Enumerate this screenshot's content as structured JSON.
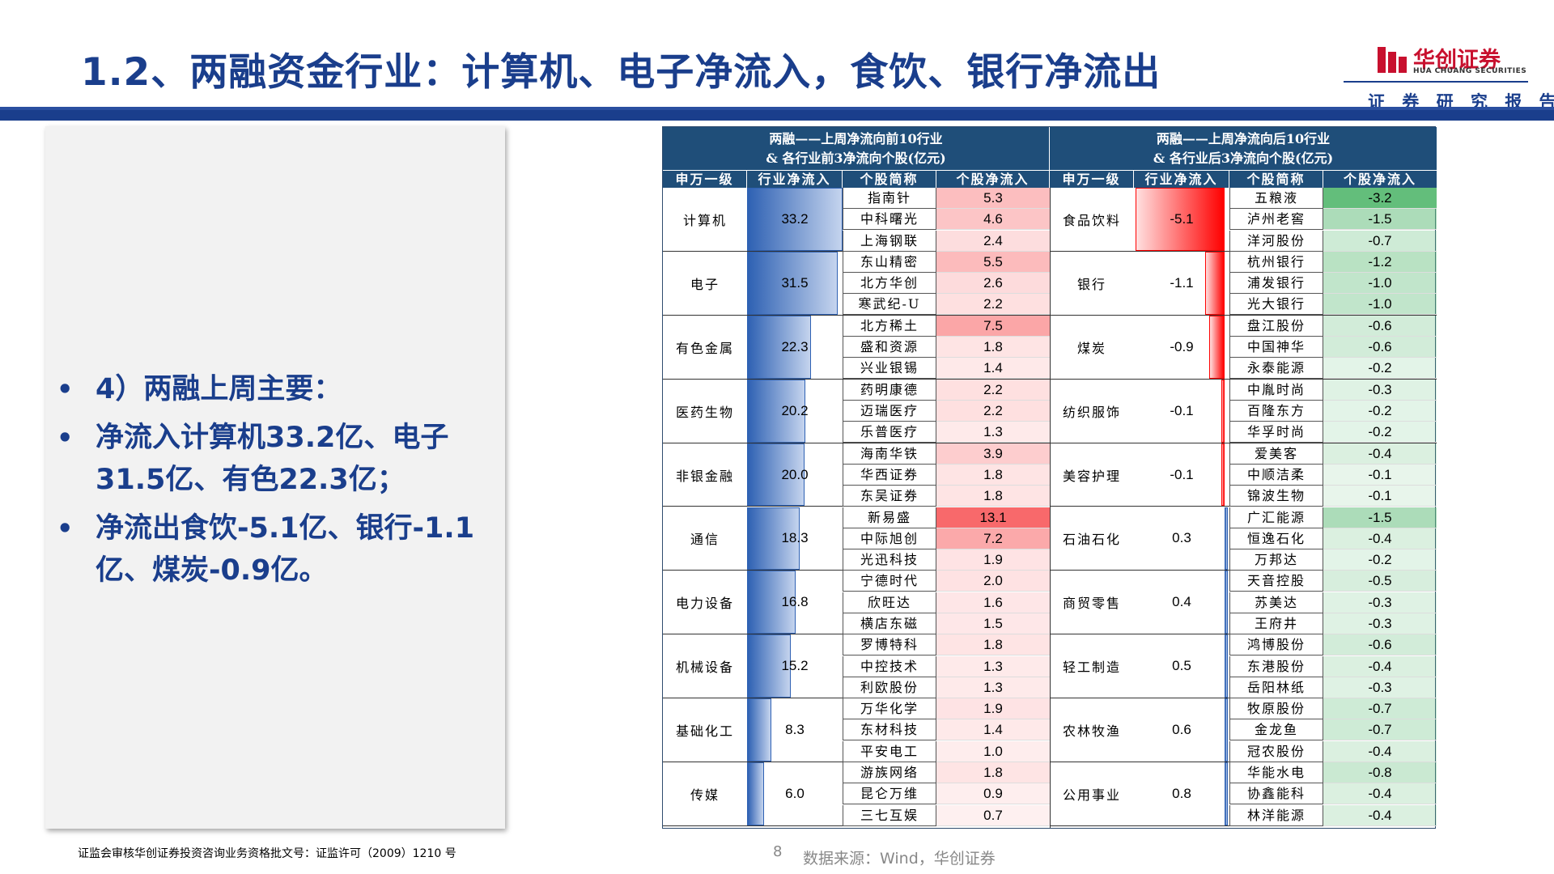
{
  "header": {
    "title": "1.2、两融资金行业：计算机、电子净流入，食饮、银行净流出",
    "logo_cn": "华创证券",
    "logo_en": "HUA CHUANG SECURITIES",
    "subtitle": "证 券 研 究 报 告",
    "brand_color": "#1a3e8c",
    "logo_color": "#c8102e"
  },
  "bullets": [
    "4）两融上周主要：",
    "净流入计算机33.2亿、电子31.5亿、有色22.3亿；",
    "净流出食饮-5.1亿、银行-1.1亿、煤炭-0.9亿。"
  ],
  "table": {
    "left_title_line1": "两融——上周净流向前10行业",
    "left_title_line2": "& 各行业前3净流向个股(亿元)",
    "right_title_line1": "两融——上周净流向后10行业",
    "right_title_line2": "& 各行业后3净流向个股(亿元)",
    "col_headers": [
      "申万一级",
      "行业净流入",
      "个股简称",
      "个股净流入",
      "申万一级",
      "行业净流入",
      "个股简称",
      "个股净流入"
    ],
    "left": [
      {
        "industry": "计算机",
        "value": "33.2",
        "num": 33.2,
        "stocks": [
          {
            "name": "指南针",
            "value": "5.3",
            "num": 5.3
          },
          {
            "name": "中科曙光",
            "value": "4.6",
            "num": 4.6
          },
          {
            "name": "上海钢联",
            "value": "2.4",
            "num": 2.4
          }
        ]
      },
      {
        "industry": "电子",
        "value": "31.5",
        "num": 31.5,
        "stocks": [
          {
            "name": "东山精密",
            "value": "5.5",
            "num": 5.5
          },
          {
            "name": "北方华创",
            "value": "2.6",
            "num": 2.6
          },
          {
            "name": "寒武纪-U",
            "value": "2.2",
            "num": 2.2
          }
        ]
      },
      {
        "industry": "有色金属",
        "value": "22.3",
        "num": 22.3,
        "stocks": [
          {
            "name": "北方稀土",
            "value": "7.5",
            "num": 7.5
          },
          {
            "name": "盛和资源",
            "value": "1.8",
            "num": 1.8
          },
          {
            "name": "兴业银锡",
            "value": "1.4",
            "num": 1.4
          }
        ]
      },
      {
        "industry": "医药生物",
        "value": "20.2",
        "num": 20.2,
        "stocks": [
          {
            "name": "药明康德",
            "value": "2.2",
            "num": 2.2
          },
          {
            "name": "迈瑞医疗",
            "value": "2.2",
            "num": 2.2
          },
          {
            "name": "乐普医疗",
            "value": "1.3",
            "num": 1.3
          }
        ]
      },
      {
        "industry": "非银金融",
        "value": "20.0",
        "num": 20.0,
        "stocks": [
          {
            "name": "海南华铁",
            "value": "3.9",
            "num": 3.9
          },
          {
            "name": "华西证券",
            "value": "1.8",
            "num": 1.8
          },
          {
            "name": "东吴证券",
            "value": "1.8",
            "num": 1.8
          }
        ]
      },
      {
        "industry": "通信",
        "value": "18.3",
        "num": 18.3,
        "stocks": [
          {
            "name": "新易盛",
            "value": "13.1",
            "num": 13.1
          },
          {
            "name": "中际旭创",
            "value": "7.2",
            "num": 7.2
          },
          {
            "name": "光迅科技",
            "value": "1.9",
            "num": 1.9
          }
        ]
      },
      {
        "industry": "电力设备",
        "value": "16.8",
        "num": 16.8,
        "stocks": [
          {
            "name": "宁德时代",
            "value": "2.0",
            "num": 2.0
          },
          {
            "name": "欣旺达",
            "value": "1.6",
            "num": 1.6
          },
          {
            "name": "横店东磁",
            "value": "1.5",
            "num": 1.5
          }
        ]
      },
      {
        "industry": "机械设备",
        "value": "15.2",
        "num": 15.2,
        "stocks": [
          {
            "name": "罗博特科",
            "value": "1.8",
            "num": 1.8
          },
          {
            "name": "中控技术",
            "value": "1.3",
            "num": 1.3
          },
          {
            "name": "利欧股份",
            "value": "1.3",
            "num": 1.3
          }
        ]
      },
      {
        "industry": "基础化工",
        "value": "8.3",
        "num": 8.3,
        "stocks": [
          {
            "name": "万华化学",
            "value": "1.9",
            "num": 1.9
          },
          {
            "name": "东材科技",
            "value": "1.4",
            "num": 1.4
          },
          {
            "name": "平安电工",
            "value": "1.0",
            "num": 1.0
          }
        ]
      },
      {
        "industry": "传媒",
        "value": "6.0",
        "num": 6.0,
        "stocks": [
          {
            "name": "游族网络",
            "value": "1.8",
            "num": 1.8
          },
          {
            "name": "昆仑万维",
            "value": "0.9",
            "num": 0.9
          },
          {
            "name": "三七互娱",
            "value": "0.7",
            "num": 0.7
          }
        ]
      }
    ],
    "right": [
      {
        "industry": "食品饮料",
        "value": "-5.1",
        "num": -5.1,
        "stocks": [
          {
            "name": "五粮液",
            "value": "-3.2",
            "num": -3.2
          },
          {
            "name": "泸州老窖",
            "value": "-1.5",
            "num": -1.5
          },
          {
            "name": "洋河股份",
            "value": "-0.7",
            "num": -0.7
          }
        ]
      },
      {
        "industry": "银行",
        "value": "-1.1",
        "num": -1.1,
        "stocks": [
          {
            "name": "杭州银行",
            "value": "-1.2",
            "num": -1.2
          },
          {
            "name": "浦发银行",
            "value": "-1.0",
            "num": -1.0
          },
          {
            "name": "光大银行",
            "value": "-1.0",
            "num": -1.0
          }
        ]
      },
      {
        "industry": "煤炭",
        "value": "-0.9",
        "num": -0.9,
        "stocks": [
          {
            "name": "盘江股份",
            "value": "-0.6",
            "num": -0.6
          },
          {
            "name": "中国神华",
            "value": "-0.6",
            "num": -0.6
          },
          {
            "name": "永泰能源",
            "value": "-0.2",
            "num": -0.2
          }
        ]
      },
      {
        "industry": "纺织服饰",
        "value": "-0.1",
        "num": -0.1,
        "stocks": [
          {
            "name": "中胤时尚",
            "value": "-0.3",
            "num": -0.3
          },
          {
            "name": "百隆东方",
            "value": "-0.2",
            "num": -0.2
          },
          {
            "name": "华孚时尚",
            "value": "-0.2",
            "num": -0.2
          }
        ]
      },
      {
        "industry": "美容护理",
        "value": "-0.1",
        "num": -0.1,
        "stocks": [
          {
            "name": "爱美客",
            "value": "-0.4",
            "num": -0.4
          },
          {
            "name": "中顺洁柔",
            "value": "-0.1",
            "num": -0.1
          },
          {
            "name": "锦波生物",
            "value": "-0.1",
            "num": -0.1
          }
        ]
      },
      {
        "industry": "石油石化",
        "value": "0.3",
        "num": 0.3,
        "stocks": [
          {
            "name": "广汇能源",
            "value": "-1.5",
            "num": -1.5
          },
          {
            "name": "恒逸石化",
            "value": "-0.4",
            "num": -0.4
          },
          {
            "name": "万邦达",
            "value": "-0.2",
            "num": -0.2
          }
        ]
      },
      {
        "industry": "商贸零售",
        "value": "0.4",
        "num": 0.4,
        "stocks": [
          {
            "name": "天音控股",
            "value": "-0.5",
            "num": -0.5
          },
          {
            "name": "苏美达",
            "value": "-0.3",
            "num": -0.3
          },
          {
            "name": "王府井",
            "value": "-0.3",
            "num": -0.3
          }
        ]
      },
      {
        "industry": "轻工制造",
        "value": "0.5",
        "num": 0.5,
        "stocks": [
          {
            "name": "鸿博股份",
            "value": "-0.6",
            "num": -0.6
          },
          {
            "name": "东港股份",
            "value": "-0.4",
            "num": -0.4
          },
          {
            "name": "岳阳林纸",
            "value": "-0.3",
            "num": -0.3
          }
        ]
      },
      {
        "industry": "农林牧渔",
        "value": "0.6",
        "num": 0.6,
        "stocks": [
          {
            "name": "牧原股份",
            "value": "-0.7",
            "num": -0.7
          },
          {
            "name": "金龙鱼",
            "value": "-0.7",
            "num": -0.7
          },
          {
            "name": "冠农股份",
            "value": "-0.4",
            "num": -0.4
          }
        ]
      },
      {
        "industry": "公用事业",
        "value": "0.8",
        "num": 0.8,
        "stocks": [
          {
            "name": "华能水电",
            "value": "-0.8",
            "num": -0.8
          },
          {
            "name": "协鑫能科",
            "value": "-0.4",
            "num": -0.4
          },
          {
            "name": "林洋能源",
            "value": "-0.4",
            "num": -0.4
          }
        ]
      }
    ]
  },
  "footer": {
    "license": "证监会审核华创证券投资咨询业务资格批文号：证监许可（2009）1210 号",
    "page": "8",
    "source": "数据来源：Wind，华创证券"
  }
}
